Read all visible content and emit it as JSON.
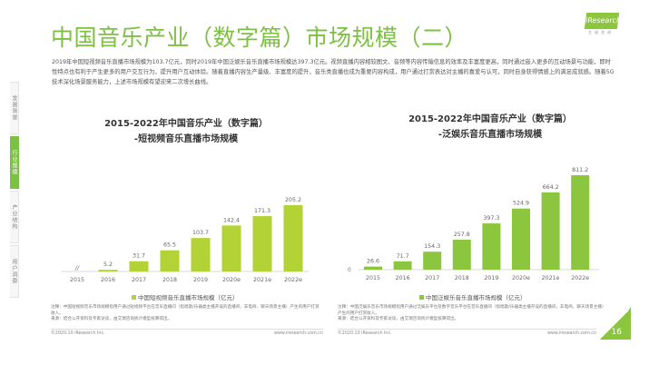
{
  "header": {
    "title": "中国音乐产业（数字篇）市场规模（二）",
    "logo": "iResearch",
    "logo_sub": "艾瑞咨询"
  },
  "body_text": "2019年中国短视频音乐直播市场规模为103.7亿元，同时2019年中国泛娱乐音乐直播市场规模达397.3亿元。视频直播内容相较图文、音频等内容传输信息的效率及丰富度更高，同时通过嵌入更多的互动场景与功能，即时性特点也有利于产生更多的用户交互行为，提升用户互动体验。随着直播内容生产量级、丰富度的提升，音乐类直播也成为重要内容构成，用户通过打赏表达对主播的喜爱与认可，同时自身获得情感上的满足成就感。随着5G技术深化场景服务能力，上述市场规模有望迎来二次增长曲线。",
  "sidebar": {
    "items": [
      {
        "label": "发展背景",
        "active": false
      },
      {
        "label": "行业规模",
        "active": true
      },
      {
        "label": "产业结构",
        "active": false
      },
      {
        "label": "用户洞察",
        "active": false
      }
    ]
  },
  "chart_data": [
    {
      "type": "bar",
      "title": "2015-2022年中国音乐产业（数字篇）",
      "subtitle": "-短视频音乐直播市场规模",
      "categories": [
        "2015",
        "2016",
        "2017",
        "2018",
        "2019",
        "2020e",
        "2021e",
        "2022e"
      ],
      "values": [
        null,
        5.2,
        31.7,
        65.5,
        103.7,
        142.4,
        171.3,
        205.2
      ],
      "labels": [
        "//",
        "5.2",
        "31.7",
        "65.5",
        "103.7",
        "142.4",
        "171.3",
        "205.2"
      ],
      "legend": "中国短视频音乐直播市场规模（亿元）",
      "color": "#b2d235",
      "legend_position": "bottom",
      "grid": false
    },
    {
      "type": "bar",
      "title": "2015-2022年中国音乐产业（数字篇）",
      "subtitle": "-泛娱乐音乐直播市场规模",
      "categories": [
        "2015",
        "2016",
        "2017",
        "2018",
        "2019",
        "2020e",
        "2021e",
        "2022e"
      ],
      "values": [
        26.6,
        71.7,
        154.3,
        257.8,
        397.3,
        524.9,
        664.2,
        811.2
      ],
      "labels": [
        "26.6",
        "71.7",
        "154.3",
        "257.8",
        "397.3",
        "524.9",
        "664.2",
        "811.2"
      ],
      "y_zero_label": "0",
      "legend": "中国泛娱乐音乐直播市场规模（亿元）",
      "color": "#8cc63f",
      "legend_position": "bottom",
      "grid": false
    }
  ],
  "notes": [
    {
      "note": "注释：中国短视频音乐市场规模指用户通过短视频平台在音乐直播间（指唱歌/乐器类主播开设的直播间，非电商、聊天场景主播）产生的用户打赏收入。",
      "source": "来源：结合公开资料及专家访谈，由艾瑞咨询统计模型核算得出。"
    },
    {
      "note": "注释：中国泛娱乐音乐市场规模指用户通过泛娱乐平台及数字音乐平台在音乐直播间（指唱歌/乐器类主播开设的直播间，非电商、聊天场景主播）产生的用户打赏收入。",
      "source": "来源：结合公开资料及专家访谈，由艾瑞咨询统计模型核算得出。"
    }
  ],
  "footer": {
    "copyright": "©2020.10 iResearch Inc.",
    "url": "www.iresearch.com.cn"
  },
  "page_number": "16"
}
